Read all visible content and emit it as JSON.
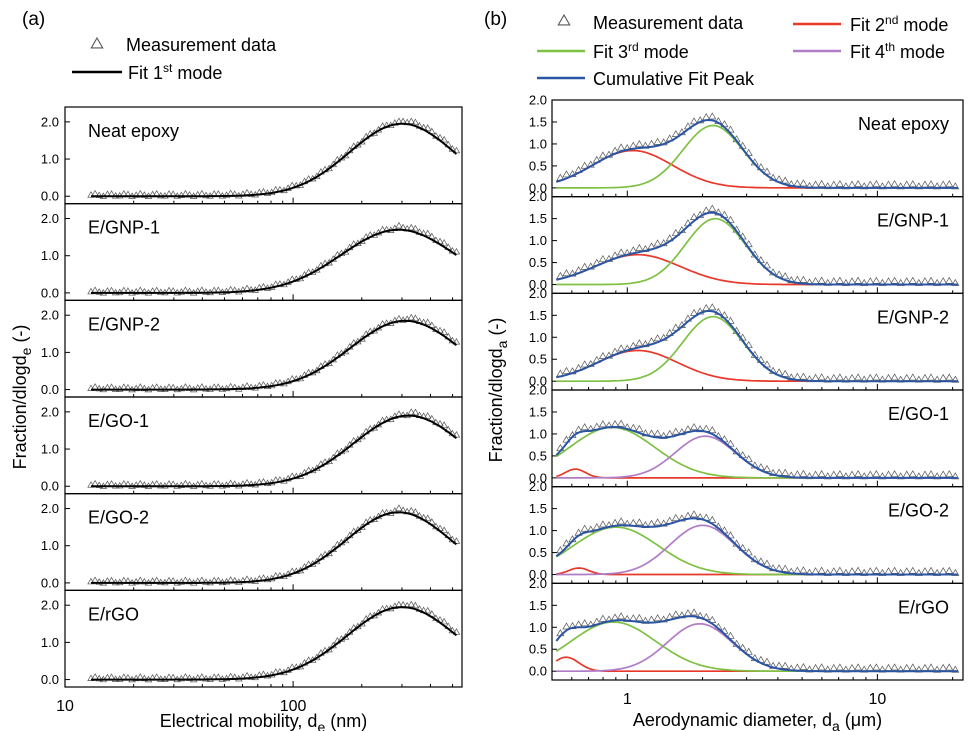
{
  "colors": {
    "measurement": "#555555",
    "fit1": "#000000",
    "fit2": "#e8382a",
    "fit3": "#7dc142",
    "fit4": "#b07cc6",
    "cumulative": "#2a55a5"
  },
  "panel_a": {
    "label": "(a)",
    "legend": [
      {
        "marker": "triangle",
        "text": "Measurement data"
      },
      {
        "marker": "line",
        "text": "Fit 1st mode",
        "base": "Fit 1",
        "sup": "st",
        "rest": " mode"
      }
    ],
    "ylabel": "Fraction/dlogd",
    "ylabel_sub": "e",
    "ylabel_rest": " (-)",
    "xlabel": "Electrical mobility, d",
    "xlabel_sub": "e",
    "xlabel_rest": " (nm)"
  },
  "panel_b": {
    "label": "(b)",
    "legend": [
      {
        "marker": "triangle",
        "text": "Measurement data"
      },
      {
        "marker": "line",
        "color": "fit2",
        "text": "Fit 2nd mode",
        "base": "Fit 2",
        "sup": "nd",
        "rest": " mode"
      },
      {
        "marker": "line",
        "color": "fit3",
        "text": "Fit 3rd mode",
        "base": "Fit 3",
        "sup": "rd",
        "rest": " mode"
      },
      {
        "marker": "line",
        "color": "fit4",
        "text": "Fit 4th mode",
        "base": "Fit 4",
        "sup": "th",
        "rest": " mode"
      },
      {
        "marker": "line",
        "color": "cumulative",
        "text": "Cumulative Fit Peak",
        "base": "Cumulative Fit Peak",
        "sup": "",
        "rest": ""
      }
    ],
    "ylabel": "Fraction/dlogd",
    "ylabel_sub": "a",
    "ylabel_rest": " (-)",
    "xlabel": "Aerodynamic diameter, d",
    "xlabel_sub": "a",
    "xlabel_rest": " (μm)"
  },
  "chart_data": [
    {
      "type": "scatter",
      "panel": "a",
      "x_scale": "log",
      "xlim": [
        10,
        550
      ],
      "x_ticks": [
        10,
        100
      ],
      "x_tick_labels": [
        "10",
        "100"
      ],
      "ylim": [
        -0.2,
        2.4
      ],
      "y_ticks": [
        0.0,
        1.0,
        2.0
      ],
      "y_tick_labels": [
        "0.0",
        "1.0",
        "2.0"
      ],
      "subplots": [
        {
          "sample": "Neat epoxy",
          "peak_d": 300,
          "peak_value": 1.95,
          "sigma": 0.23
        },
        {
          "sample": "E/GNP-1",
          "peak_d": 290,
          "peak_value": 1.7,
          "sigma": 0.25
        },
        {
          "sample": "E/GNP-2",
          "peak_d": 310,
          "peak_value": 1.85,
          "sigma": 0.24
        },
        {
          "sample": "E/GO-1",
          "peak_d": 320,
          "peak_value": 1.9,
          "sigma": 0.24
        },
        {
          "sample": "E/GO-2",
          "peak_d": 290,
          "peak_value": 1.9,
          "sigma": 0.23
        },
        {
          "sample": "E/rGO",
          "peak_d": 300,
          "peak_value": 1.95,
          "sigma": 0.24
        }
      ],
      "series": [
        {
          "name": "Measurement data"
        },
        {
          "name": "Fit 1st mode"
        }
      ]
    },
    {
      "type": "line",
      "panel": "b",
      "x_scale": "log",
      "xlim": [
        0.5,
        22
      ],
      "x_ticks": [
        1,
        10
      ],
      "x_tick_labels": [
        "1",
        "10"
      ],
      "ylim": [
        -0.2,
        2.0
      ],
      "y_ticks": [
        0.0,
        0.5,
        1.0,
        1.5,
        2.0
      ],
      "y_tick_labels": [
        "0.0",
        "0.5",
        "1.0",
        "1.5",
        "2.0"
      ],
      "subplots": [
        {
          "sample": "Neat epoxy",
          "modes": [
            {
              "series": "Fit 2nd mode",
              "center": 1.05,
              "amplitude": 0.85,
              "sigma": 0.16
            },
            {
              "series": "Fit 3rd mode",
              "center": 2.2,
              "amplitude": 1.42,
              "sigma": 0.12
            }
          ]
        },
        {
          "sample": "E/GNP-1",
          "modes": [
            {
              "series": "Fit 2nd mode",
              "center": 1.1,
              "amplitude": 0.68,
              "sigma": 0.17
            },
            {
              "series": "Fit 3rd mode",
              "center": 2.25,
              "amplitude": 1.5,
              "sigma": 0.12
            }
          ]
        },
        {
          "sample": "E/GNP-2",
          "modes": [
            {
              "series": "Fit 2nd mode",
              "center": 1.1,
              "amplitude": 0.7,
              "sigma": 0.16
            },
            {
              "series": "Fit 3rd mode",
              "center": 2.2,
              "amplitude": 1.47,
              "sigma": 0.12
            }
          ]
        },
        {
          "sample": "E/GO-1",
          "modes": [
            {
              "series": "Fit 2nd mode",
              "center": 0.62,
              "amplitude": 0.2,
              "sigma": 0.04
            },
            {
              "series": "Fit 3rd mode",
              "center": 0.87,
              "amplitude": 1.15,
              "sigma": 0.17
            },
            {
              "series": "Fit 4th mode",
              "center": 2.05,
              "amplitude": 0.95,
              "sigma": 0.12
            }
          ]
        },
        {
          "sample": "E/GO-2",
          "modes": [
            {
              "series": "Fit 2nd mode",
              "center": 0.64,
              "amplitude": 0.15,
              "sigma": 0.04
            },
            {
              "series": "Fit 3rd mode",
              "center": 0.9,
              "amplitude": 1.08,
              "sigma": 0.17
            },
            {
              "series": "Fit 4th mode",
              "center": 2.0,
              "amplitude": 1.12,
              "sigma": 0.13
            }
          ]
        },
        {
          "sample": "E/rGO",
          "modes": [
            {
              "series": "Fit 2nd mode",
              "center": 0.57,
              "amplitude": 0.32,
              "sigma": 0.05
            },
            {
              "series": "Fit 3rd mode",
              "center": 0.88,
              "amplitude": 1.12,
              "sigma": 0.17
            },
            {
              "series": "Fit 4th mode",
              "center": 1.95,
              "amplitude": 1.08,
              "sigma": 0.13
            }
          ]
        }
      ],
      "series": [
        {
          "name": "Measurement data"
        },
        {
          "name": "Fit 2nd mode"
        },
        {
          "name": "Fit 3rd mode"
        },
        {
          "name": "Fit 4th mode"
        },
        {
          "name": "Cumulative Fit Peak"
        }
      ]
    }
  ]
}
